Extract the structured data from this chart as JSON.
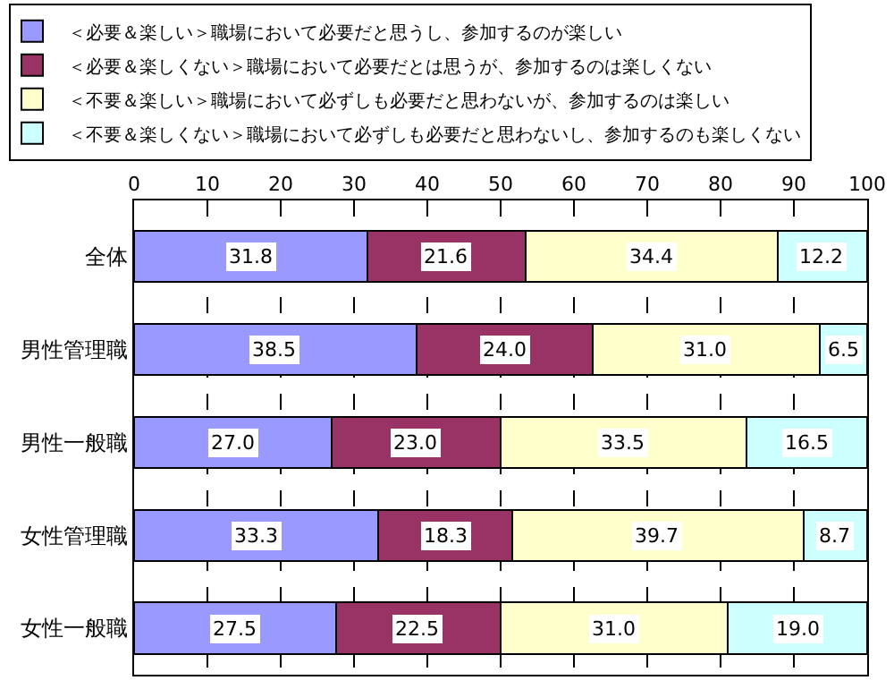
{
  "chart_data": {
    "type": "bar",
    "orientation": "horizontal",
    "stacked": true,
    "categories": [
      "全体",
      "男性管理職",
      "男性一般職",
      "女性管理職",
      "女性一般職"
    ],
    "series": [
      {
        "name": "＜必要＆楽しい＞職場において必要だと思うし、参加するのが楽しい",
        "color": "#9999ff",
        "values": [
          31.8,
          38.5,
          27.0,
          33.3,
          27.5
        ],
        "value_labels": [
          "31.8",
          "38.5",
          "27.0",
          "33.3",
          "27.5"
        ]
      },
      {
        "name": "＜必要＆楽しくない＞職場において必要だとは思うが、参加するのは楽しくない",
        "color": "#993366",
        "values": [
          21.6,
          24.0,
          23.0,
          18.3,
          22.5
        ],
        "value_labels": [
          "21.6",
          "24.0",
          "23.0",
          "18.3",
          "22.5"
        ]
      },
      {
        "name": "＜不要＆楽しい＞職場において必ずしも必要だと思わないが、参加するのは楽しい",
        "color": "#ffffcc",
        "values": [
          34.4,
          31.0,
          33.5,
          39.7,
          31.0
        ],
        "value_labels": [
          "34.4",
          "31.0",
          "33.5",
          "39.7",
          "31.0"
        ]
      },
      {
        "name": "＜不要＆楽しくない＞職場において必ずしも必要だと思わないし、参加するのも楽しくない",
        "color": "#ccffff",
        "values": [
          12.2,
          6.5,
          16.5,
          8.7,
          19.0
        ],
        "value_labels": [
          "12.2",
          "6.5",
          "16.5",
          "8.7",
          "19.0"
        ]
      }
    ],
    "xlim": [
      0,
      100
    ],
    "xticks": [
      0,
      10,
      20,
      30,
      40,
      50,
      60,
      70,
      80,
      90,
      100
    ],
    "grid": "x",
    "legend": "top"
  }
}
